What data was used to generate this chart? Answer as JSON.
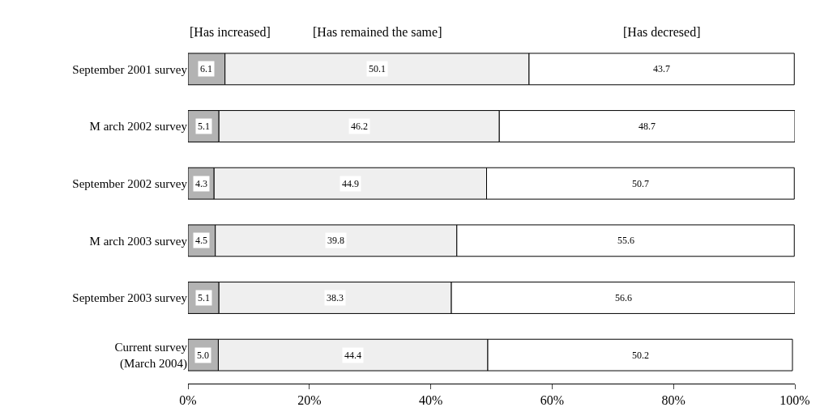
{
  "chart_data": {
    "type": "bar",
    "orientation": "horizontal",
    "stacked": true,
    "data_labels": true,
    "categories": [
      "September 2001 survey",
      "M arch 2002 survey",
      "September 2002 survey",
      "M arch 2003 survey",
      "September 2003 survey",
      "Current survey\n(March 2004)"
    ],
    "series": [
      {
        "name": "[Has increased]",
        "color": "#b3b3b3",
        "values": [
          6.1,
          5.1,
          4.3,
          4.5,
          5.1,
          5.0
        ],
        "value_labels": [
          "6.1",
          "5.1",
          "4.3",
          "4.5",
          "5.1",
          "5.0"
        ]
      },
      {
        "name": "[Has remained the same]",
        "color": "#efefef",
        "values": [
          50.1,
          46.2,
          44.9,
          39.8,
          38.3,
          44.4
        ]
      },
      {
        "name": "[Has decresed]",
        "color": "#ffffff",
        "values": [
          43.7,
          48.7,
          50.7,
          55.6,
          56.6,
          50.2
        ]
      }
    ],
    "xlim": [
      0,
      100
    ],
    "xticks": [
      {
        "value": 0,
        "label": "0%"
      },
      {
        "value": 20,
        "label": "20%"
      },
      {
        "value": 40,
        "label": "40%"
      },
      {
        "value": 60,
        "label": "60%"
      },
      {
        "value": 80,
        "label": "80%"
      },
      {
        "value": 100,
        "label": "100%"
      }
    ]
  }
}
